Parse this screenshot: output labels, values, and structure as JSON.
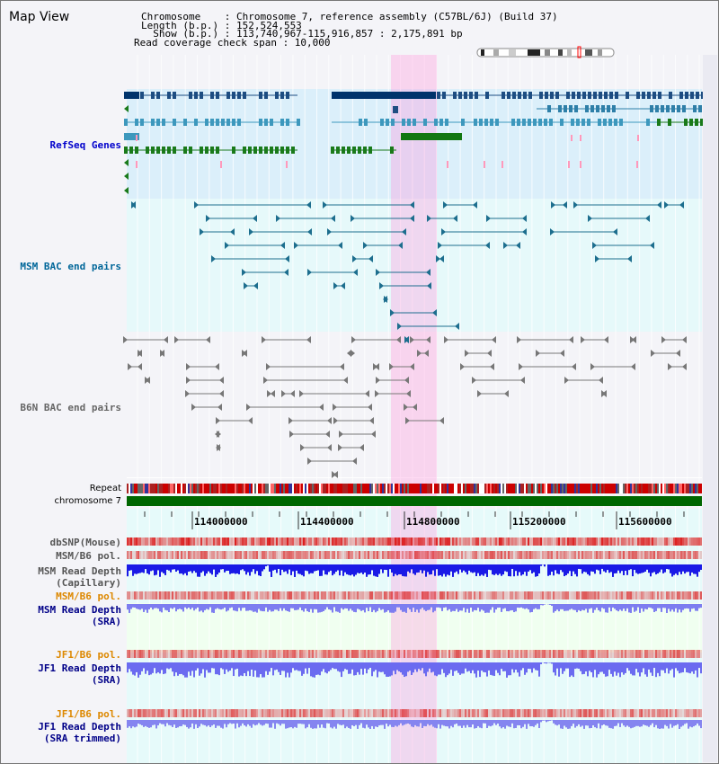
{
  "title": "Map View",
  "info": {
    "chromosome_line": "Chromosome    : Chromosome 7, reference assembly (C57BL/6J) (Build 37)",
    "length_line": "Length (b.p.) : 152,524,553",
    "show_line": "  Show (b.p.) : 113,740,967-115,916,857 : 2,175,891 bp",
    "coverage_line": "Read coverage check span : 10,000"
  },
  "tracks": {
    "refseq": "RefSeq Genes",
    "msm_bac": "MSM BAC end pairs",
    "b6n_bac": "B6N BAC end pairs",
    "repeat": "Repeat",
    "chromosome": "chromosome 7",
    "dbsnp": "dbSNP(Mouse)",
    "msm_b6_pol_1": "MSM/B6 pol.",
    "msm_read_depth_cap_1": "MSM Read Depth",
    "msm_read_depth_cap_2": "(Capillary)",
    "msm_b6_pol_2": "MSM/B6 pol.",
    "msm_read_depth_sra_1": "MSM Read Depth",
    "msm_read_depth_sra_2": "(SRA)",
    "jf1_b6_pol_1": "JF1/B6 pol.",
    "jf1_read_depth_1": "JF1 Read Depth",
    "jf1_read_depth_2": "(SRA)",
    "jf1_b6_pol_2": "JF1/B6 pol.",
    "jf1_read_depth_trim_1": "JF1 Read Depth",
    "jf1_read_depth_trim_2": "(SRA trimmed)"
  },
  "axis": {
    "ticks": [
      "114000000",
      "114400000",
      "114800000",
      "115200000",
      "115600000"
    ]
  },
  "colors": {
    "refseq_label": "#0000cc",
    "msm_bac_label": "#006699",
    "b6n_bac_label": "#666666",
    "pol_orange": "#dd8800",
    "read_depth_blue": "#000088",
    "highlight_pink": "#ff99dd",
    "chromosome_green": "#006600"
  }
}
